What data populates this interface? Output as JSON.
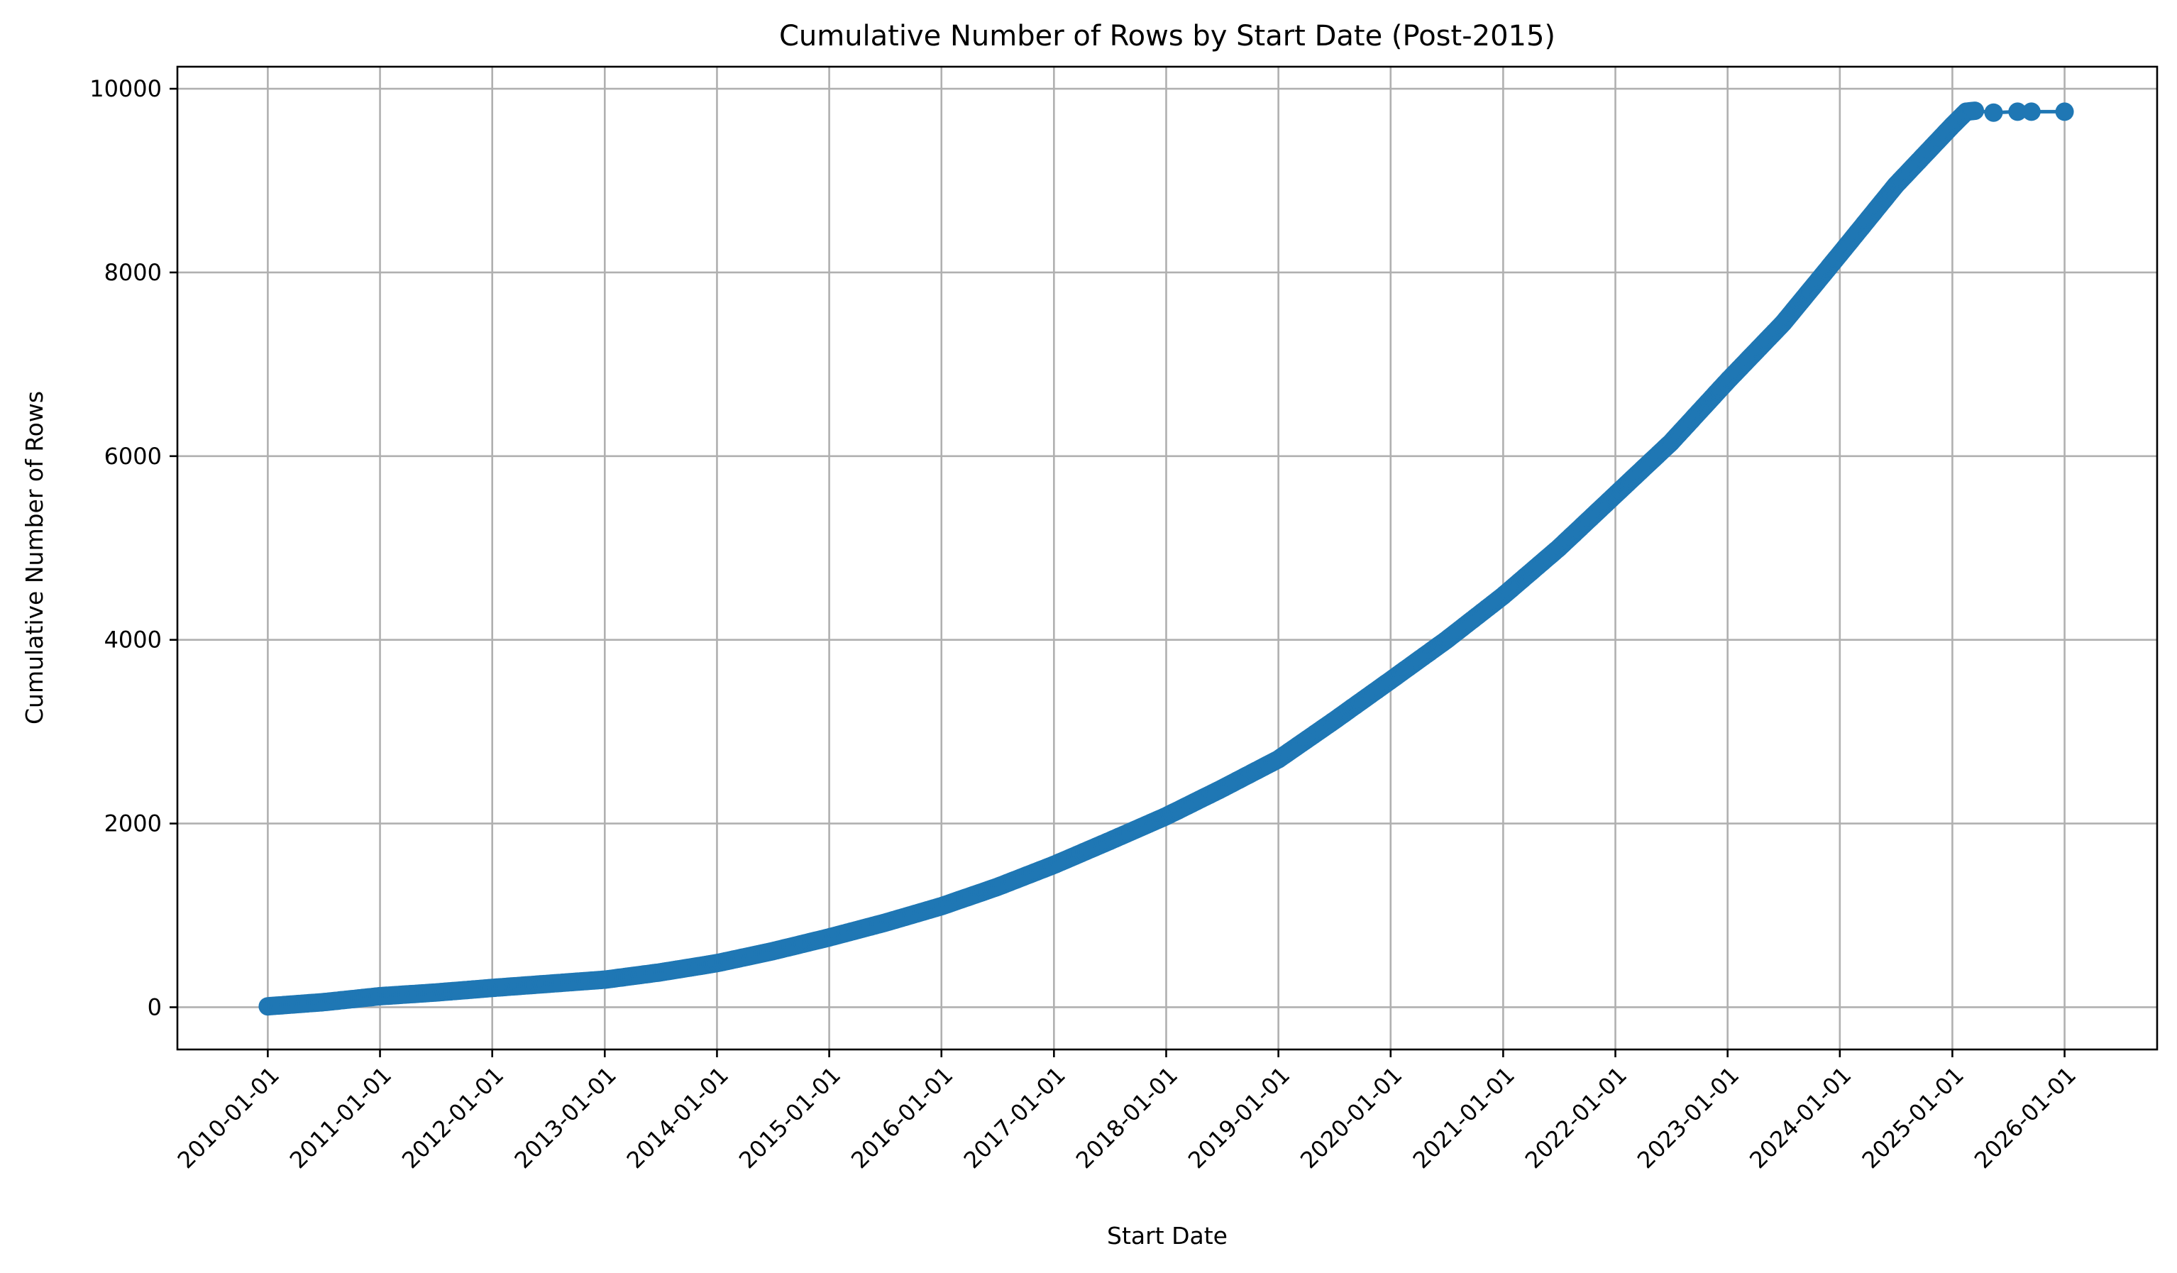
{
  "chart_data": {
    "type": "line",
    "title": "Cumulative Number of Rows by Start Date (Post-2015)",
    "xlabel": "Start Date",
    "ylabel": "Cumulative Number of Rows",
    "x_is_date": true,
    "xlim": [
      "2009-03-13",
      "2026-10-29"
    ],
    "ylim": [
      -460,
      10240
    ],
    "x_ticks": [
      "2010-01-01",
      "2011-01-01",
      "2012-01-01",
      "2013-01-01",
      "2014-01-01",
      "2015-01-01",
      "2016-01-01",
      "2017-01-01",
      "2018-01-01",
      "2019-01-01",
      "2020-01-01",
      "2021-01-01",
      "2022-01-01",
      "2023-01-01",
      "2024-01-01",
      "2025-01-01",
      "2026-01-01"
    ],
    "y_ticks": [
      0,
      2000,
      4000,
      6000,
      8000,
      10000
    ],
    "y_tick_labels": [
      "0",
      "2000",
      "4000",
      "6000",
      "8000",
      "10000"
    ],
    "grid": true,
    "legend": "none",
    "marker": "circle",
    "color": "#1f77b4",
    "series": [
      {
        "x": [
          "2010-01-01",
          "2010-07-01",
          "2011-01-01",
          "2011-07-01",
          "2012-01-01",
          "2012-07-01",
          "2013-01-01",
          "2013-07-01",
          "2014-01-01",
          "2014-07-01",
          "2015-01-01",
          "2015-07-01",
          "2016-01-01",
          "2016-07-01",
          "2017-01-01",
          "2017-07-01",
          "2018-01-01",
          "2018-07-01",
          "2019-01-01",
          "2019-07-01",
          "2020-01-01",
          "2020-07-01",
          "2021-01-01",
          "2021-07-01",
          "2022-01-01",
          "2022-07-01",
          "2023-01-01",
          "2023-07-01",
          "2024-01-01",
          "2024-07-01",
          "2025-01-01",
          "2025-02-15",
          "2025-03-15",
          "2025-05-15",
          "2025-08-01",
          "2025-09-15",
          "2026-01-01"
        ],
        "y": [
          10,
          55,
          120,
          160,
          210,
          255,
          300,
          380,
          480,
          610,
          760,
          920,
          1100,
          1310,
          1550,
          1810,
          2080,
          2380,
          2700,
          3120,
          3560,
          4000,
          4480,
          5000,
          5580,
          6150,
          6820,
          7450,
          8200,
          8950,
          9600,
          9750,
          9760,
          9740,
          9750,
          9750,
          9750
        ]
      }
    ]
  }
}
